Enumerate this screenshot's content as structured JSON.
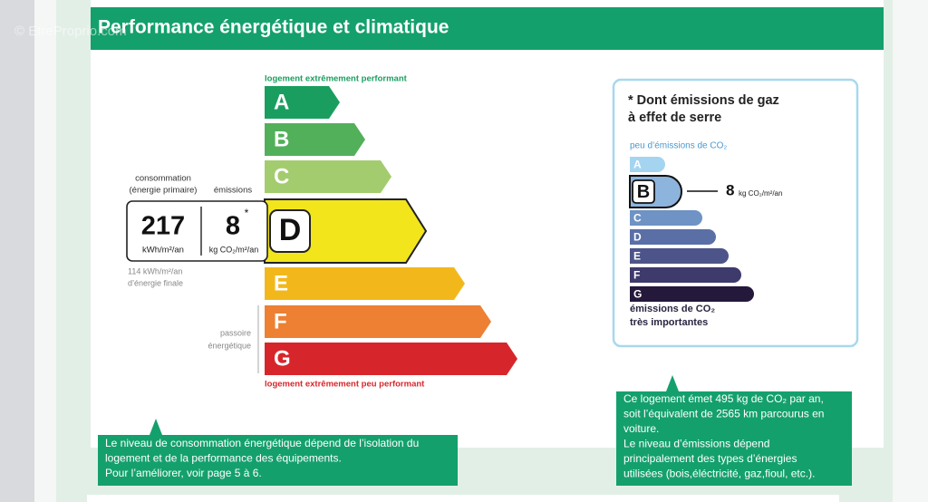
{
  "watermark": "© EtreProprio.com",
  "header": {
    "title": "Performance énergétique et climatique"
  },
  "energy_scale": {
    "top_label": "logement extrêmement performant",
    "bottom_label": "logement extrêmement peu performant",
    "classes": [
      "A",
      "B",
      "C",
      "D",
      "E",
      "F",
      "G"
    ],
    "current_class": "D",
    "passoire_label": [
      "passoire",
      "énergétique"
    ]
  },
  "energy_box": {
    "consumption_label": [
      "consommation",
      "(énergie primaire)"
    ],
    "emissions_label": "émissions",
    "consumption": 217,
    "consumption_unit": "kWh/m²/an",
    "emissions": 8,
    "emissions_marker": "*",
    "emissions_unit": "kg CO₂/m²/an",
    "final_energy": [
      "114 kWh/m²/an",
      "d’énergie finale"
    ]
  },
  "ghg_scale": {
    "title": [
      "* Dont émissions de gaz",
      "à effet de serre"
    ],
    "top_label": "peu d’émissions de CO₂",
    "bottom_label": [
      "émissions de CO₂",
      "très importantes"
    ],
    "classes": [
      "A",
      "B",
      "C",
      "D",
      "E",
      "F",
      "G"
    ],
    "current_class": "B",
    "emissions": 8,
    "emissions_unit": "kg CO₂/m²/an"
  },
  "callouts": [
    {
      "lines": [
        "Le niveau de consommation énergétique dépend de l’isolation du",
        "logement  et de la performance des équipements.",
        "Pour l’améliorer, voir page 5 à 6."
      ]
    },
    {
      "lines": [
        "Ce logement émet 495 kg de CO₂ par an,",
        "soit l’équivalent de 2565 km parcourus en",
        "voiture.",
        "Le niveau d’émissions dépend",
        "principalement des types d’énergies",
        "utilisées (bois,éléctricité, gaz,fioul, etc.)."
      ]
    }
  ]
}
